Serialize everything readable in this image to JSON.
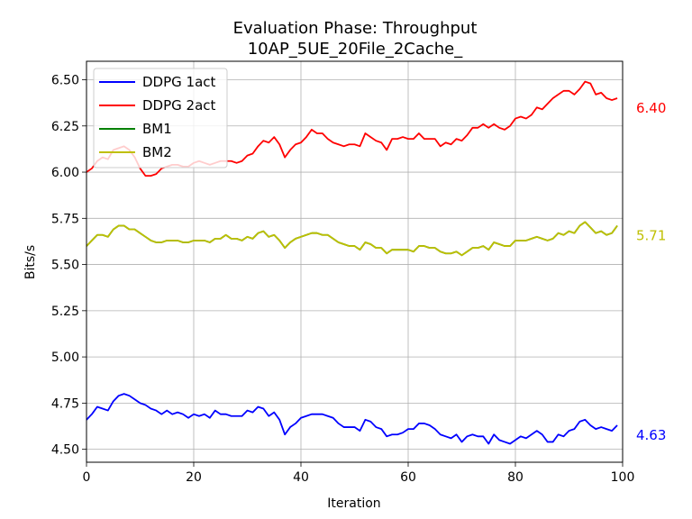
{
  "chart_data": {
    "type": "line",
    "title": "Evaluation Phase: Throughput",
    "subtitle": "10AP_5UE_20File_2Cache_",
    "xlabel": "Iteration",
    "ylabel": "Bits/s",
    "xlim": [
      0,
      100
    ],
    "ylim": [
      4.43,
      6.6
    ],
    "xticks": [
      0,
      20,
      40,
      60,
      80,
      100
    ],
    "xtick_labels": [
      "0",
      "20",
      "40",
      "60",
      "80",
      "100"
    ],
    "yticks": [
      4.5,
      4.75,
      5.0,
      5.25,
      5.5,
      5.75,
      6.0,
      6.25,
      6.5
    ],
    "ytick_labels": [
      "4.50",
      "4.75",
      "5.00",
      "5.25",
      "5.50",
      "5.75",
      "6.00",
      "6.25",
      "6.50"
    ],
    "grid": true,
    "legend_position": "top-left",
    "series": [
      {
        "name": "DDPG 1act",
        "color": "#0000ff",
        "end_label": "4.63",
        "y": [
          4.66,
          4.69,
          4.73,
          4.72,
          4.71,
          4.76,
          4.79,
          4.8,
          4.79,
          4.77,
          4.75,
          4.74,
          4.72,
          4.71,
          4.69,
          4.71,
          4.69,
          4.7,
          4.69,
          4.67,
          4.69,
          4.68,
          4.69,
          4.67,
          4.71,
          4.69,
          4.69,
          4.68,
          4.68,
          4.68,
          4.71,
          4.7,
          4.73,
          4.72,
          4.68,
          4.7,
          4.66,
          4.58,
          4.62,
          4.64,
          4.67,
          4.68,
          4.69,
          4.69,
          4.69,
          4.68,
          4.67,
          4.64,
          4.62,
          4.62,
          4.62,
          4.6,
          4.66,
          4.65,
          4.62,
          4.61,
          4.57,
          4.58,
          4.58,
          4.59,
          4.61,
          4.61,
          4.64,
          4.64,
          4.63,
          4.61,
          4.58,
          4.57,
          4.56,
          4.58,
          4.54,
          4.57,
          4.58,
          4.57,
          4.57,
          4.53,
          4.58,
          4.55,
          4.54,
          4.53,
          4.55,
          4.57,
          4.56,
          4.58,
          4.6,
          4.58,
          4.54,
          4.54,
          4.58,
          4.57,
          4.6,
          4.61,
          4.65,
          4.66,
          4.63,
          4.61,
          4.62,
          4.61,
          4.6,
          4.63
        ]
      },
      {
        "name": "DDPG 2act",
        "color": "#ff0000",
        "end_label": "6.40",
        "y": [
          6.0,
          6.02,
          6.06,
          6.08,
          6.07,
          6.12,
          6.13,
          6.14,
          6.12,
          6.08,
          6.02,
          5.98,
          5.98,
          5.99,
          6.02,
          6.03,
          6.04,
          6.04,
          6.03,
          6.03,
          6.05,
          6.06,
          6.05,
          6.04,
          6.05,
          6.06,
          6.06,
          6.06,
          6.05,
          6.06,
          6.09,
          6.1,
          6.14,
          6.17,
          6.16,
          6.19,
          6.15,
          6.08,
          6.12,
          6.15,
          6.16,
          6.19,
          6.23,
          6.21,
          6.21,
          6.18,
          6.16,
          6.15,
          6.14,
          6.15,
          6.15,
          6.14,
          6.21,
          6.19,
          6.17,
          6.16,
          6.12,
          6.18,
          6.18,
          6.19,
          6.18,
          6.18,
          6.21,
          6.18,
          6.18,
          6.18,
          6.14,
          6.16,
          6.15,
          6.18,
          6.17,
          6.2,
          6.24,
          6.24,
          6.26,
          6.24,
          6.26,
          6.24,
          6.23,
          6.25,
          6.29,
          6.3,
          6.29,
          6.31,
          6.35,
          6.34,
          6.37,
          6.4,
          6.42,
          6.44,
          6.44,
          6.42,
          6.45,
          6.49,
          6.48,
          6.42,
          6.43,
          6.4,
          6.39,
          6.4
        ]
      },
      {
        "name": "BM1",
        "color": "#008000",
        "end_label": "",
        "y": [
          5.6,
          5.63,
          5.66,
          5.66,
          5.65,
          5.69,
          5.71,
          5.71,
          5.69,
          5.69,
          5.67,
          5.65,
          5.63,
          5.62,
          5.62,
          5.63,
          5.63,
          5.63,
          5.62,
          5.62,
          5.63,
          5.63,
          5.63,
          5.62,
          5.64,
          5.64,
          5.66,
          5.64,
          5.64,
          5.63,
          5.65,
          5.64,
          5.67,
          5.68,
          5.65,
          5.66,
          5.63,
          5.59,
          5.62,
          5.64,
          5.65,
          5.66,
          5.67,
          5.67,
          5.66,
          5.66,
          5.64,
          5.62,
          5.61,
          5.6,
          5.6,
          5.58,
          5.62,
          5.61,
          5.59,
          5.59,
          5.56,
          5.58,
          5.58,
          5.58,
          5.58,
          5.57,
          5.6,
          5.6,
          5.59,
          5.59,
          5.57,
          5.56,
          5.56,
          5.57,
          5.55,
          5.57,
          5.59,
          5.59,
          5.6,
          5.58,
          5.62,
          5.61,
          5.6,
          5.6,
          5.63,
          5.63,
          5.63,
          5.64,
          5.65,
          5.64,
          5.63,
          5.64,
          5.67,
          5.66,
          5.68,
          5.67,
          5.71,
          5.73,
          5.7,
          5.67,
          5.68,
          5.66,
          5.67,
          5.71
        ]
      },
      {
        "name": "BM2",
        "color": "#bfbf00",
        "end_label": "5.71",
        "y": [
          5.6,
          5.63,
          5.66,
          5.66,
          5.65,
          5.69,
          5.71,
          5.71,
          5.69,
          5.69,
          5.67,
          5.65,
          5.63,
          5.62,
          5.62,
          5.63,
          5.63,
          5.63,
          5.62,
          5.62,
          5.63,
          5.63,
          5.63,
          5.62,
          5.64,
          5.64,
          5.66,
          5.64,
          5.64,
          5.63,
          5.65,
          5.64,
          5.67,
          5.68,
          5.65,
          5.66,
          5.63,
          5.59,
          5.62,
          5.64,
          5.65,
          5.66,
          5.67,
          5.67,
          5.66,
          5.66,
          5.64,
          5.62,
          5.61,
          5.6,
          5.6,
          5.58,
          5.62,
          5.61,
          5.59,
          5.59,
          5.56,
          5.58,
          5.58,
          5.58,
          5.58,
          5.57,
          5.6,
          5.6,
          5.59,
          5.59,
          5.57,
          5.56,
          5.56,
          5.57,
          5.55,
          5.57,
          5.59,
          5.59,
          5.6,
          5.58,
          5.62,
          5.61,
          5.6,
          5.6,
          5.63,
          5.63,
          5.63,
          5.64,
          5.65,
          5.64,
          5.63,
          5.64,
          5.67,
          5.66,
          5.68,
          5.67,
          5.71,
          5.73,
          5.7,
          5.67,
          5.68,
          5.66,
          5.67,
          5.71
        ]
      }
    ]
  }
}
